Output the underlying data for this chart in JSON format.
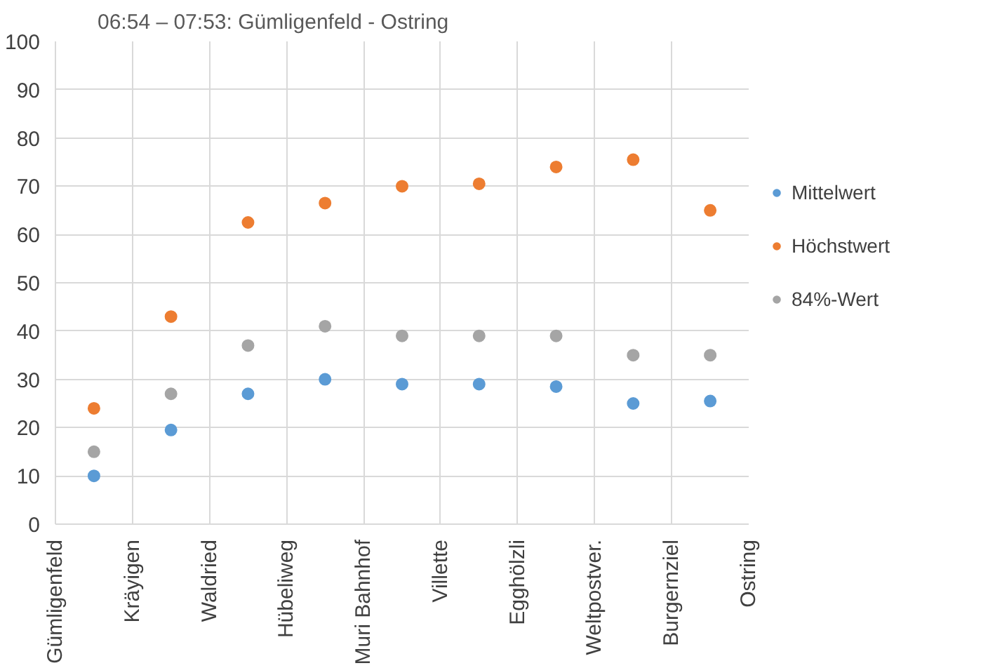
{
  "chart_data": {
    "type": "scatter",
    "title": "06:54 – 07:53: Gümligenfeld - Ostring",
    "categories": [
      "Gümligenfeld",
      null,
      "Kräyigen",
      null,
      "Waldried",
      null,
      "Hübeliweg",
      null,
      "Muri Bahnhof",
      null,
      "Villette",
      null,
      "Egghölzli",
      null,
      "Weltpostver.",
      null,
      "Burgernziel",
      null,
      "Ostring"
    ],
    "series": [
      {
        "name": "Mittelwert",
        "color": "#5b9bd5",
        "values": [
          null,
          10,
          null,
          19.5,
          null,
          27,
          null,
          30,
          null,
          29,
          null,
          29,
          null,
          28.5,
          null,
          25,
          null,
          25.5,
          null
        ]
      },
      {
        "name": "Höchstwert",
        "color": "#ed7d31",
        "values": [
          null,
          24,
          null,
          43,
          null,
          62.5,
          null,
          66.5,
          null,
          70,
          null,
          70.5,
          null,
          74,
          null,
          75.5,
          null,
          65,
          null
        ]
      },
      {
        "name": "84%-Wert",
        "color": "#a5a5a5",
        "values": [
          null,
          15,
          null,
          27,
          null,
          37,
          null,
          41,
          null,
          39,
          null,
          39,
          null,
          39,
          null,
          35,
          null,
          35,
          null
        ]
      }
    ],
    "ylim": [
      0,
      100
    ],
    "yticks": [
      0,
      10,
      20,
      30,
      40,
      50,
      60,
      70,
      80,
      90,
      100
    ],
    "grid": true,
    "legend": "right",
    "marker": "circle"
  }
}
